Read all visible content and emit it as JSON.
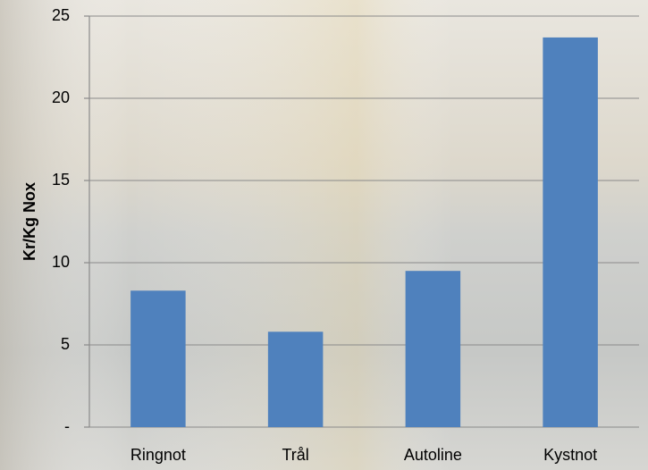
{
  "chart_data": {
    "type": "bar",
    "y_label": "Kr/Kg Nox",
    "categories": [
      "Ringnot",
      "Trål",
      "Autoline",
      "Kystnot"
    ],
    "values": [
      8.3,
      5.8,
      9.5,
      23.7
    ],
    "color": "#4f81bd",
    "ylim": [
      0,
      25
    ],
    "yticks": [
      {
        "value": 0,
        "label": "-"
      },
      5,
      10,
      15,
      20,
      25
    ],
    "grid": true
  }
}
